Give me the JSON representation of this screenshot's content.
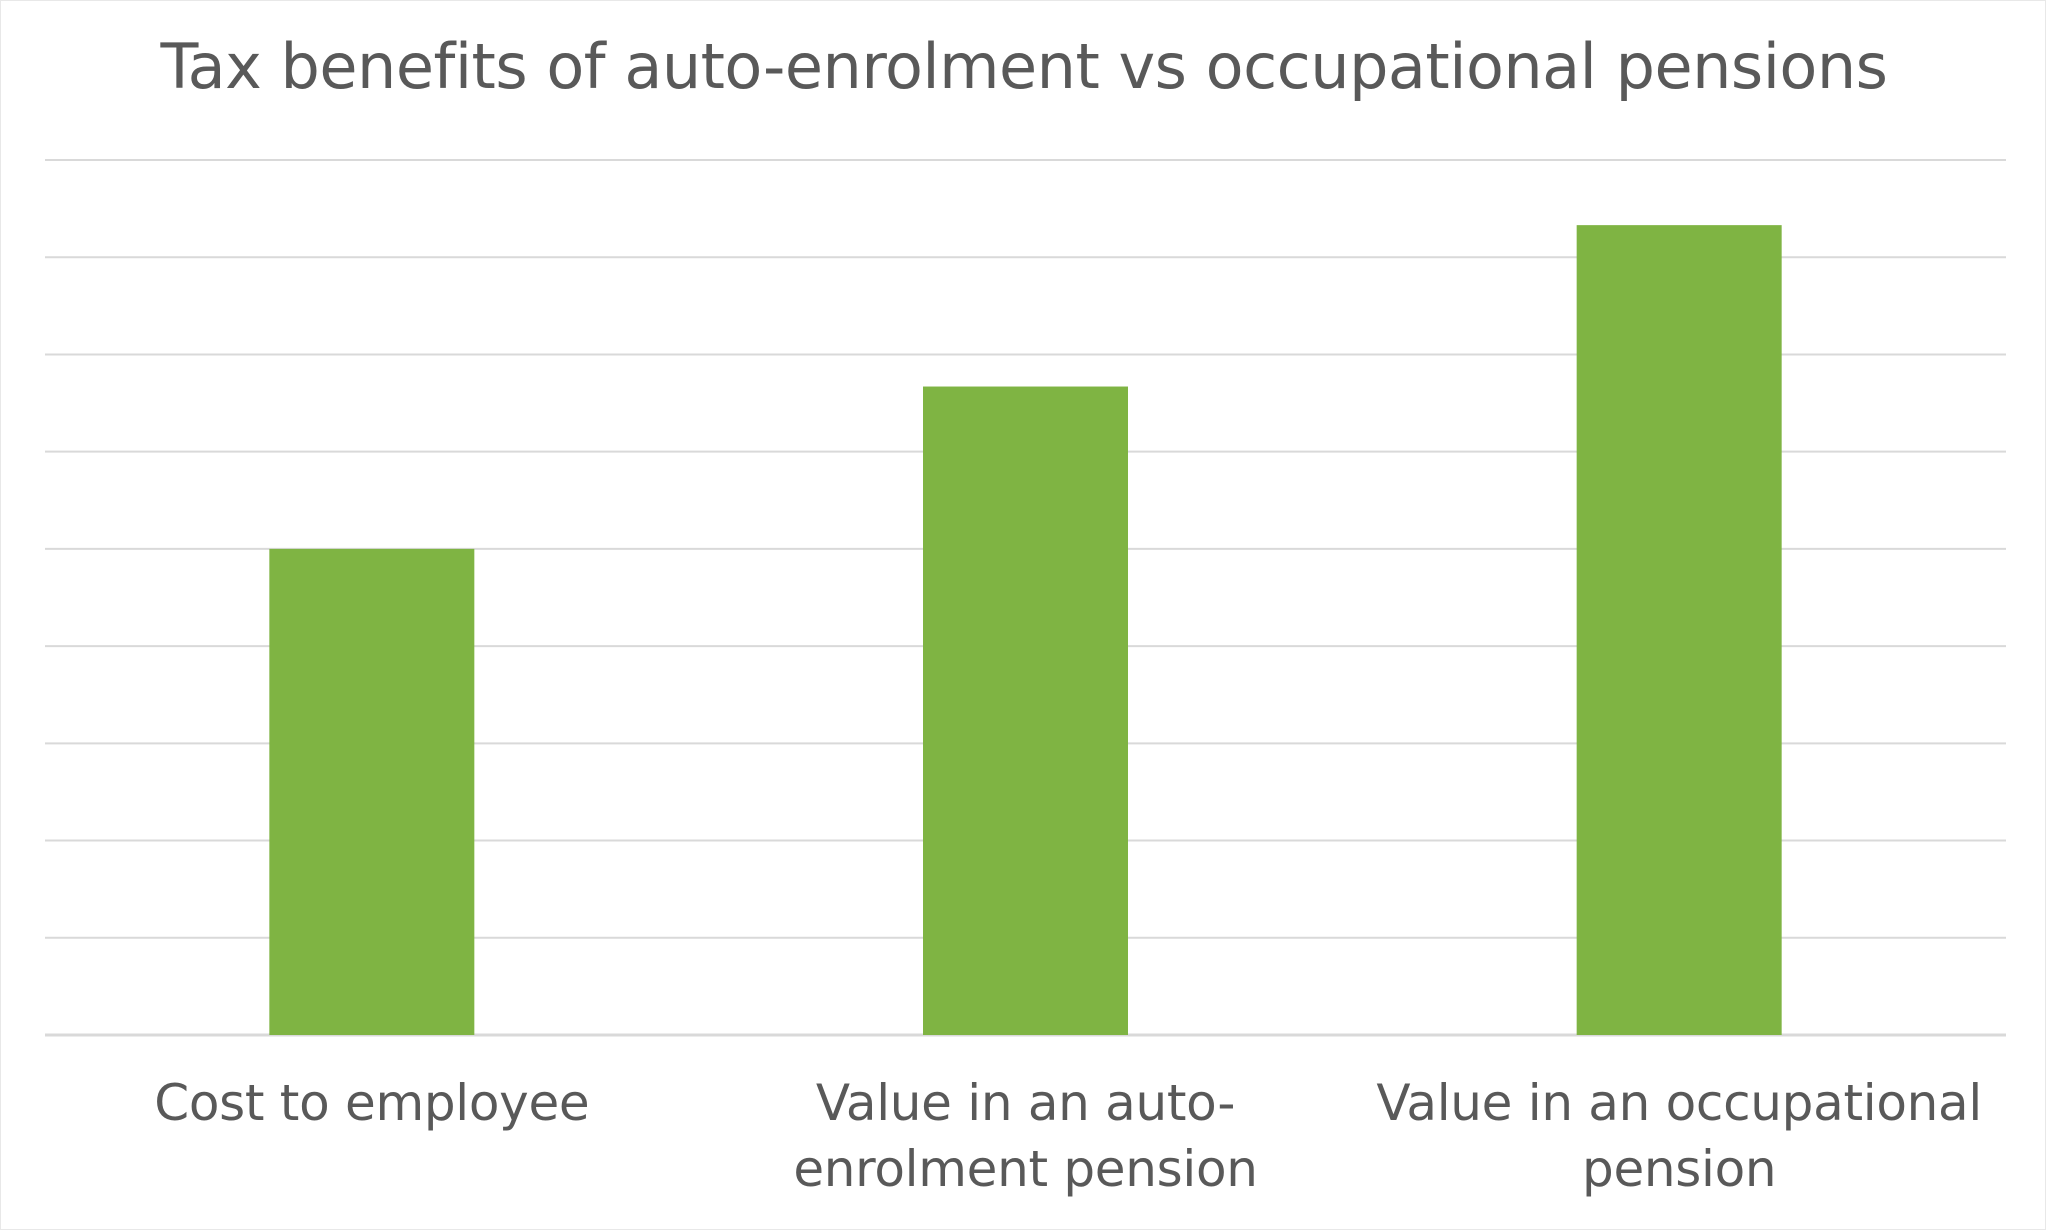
{
  "chart_data": {
    "type": "bar",
    "title": "Tax benefits of auto-enrolment vs occupational pensions",
    "xlabel": "",
    "ylabel": "",
    "categories": [
      "Cost to employee",
      "Value in an auto-enrolment pension",
      "Value in an occupational pension"
    ],
    "values": [
      5.0,
      6.67,
      8.33
    ],
    "ylim": [
      0,
      9
    ],
    "grid": true,
    "legend": "none",
    "bar_color": "#7fb443",
    "grid_color": "#d9d9d9"
  }
}
